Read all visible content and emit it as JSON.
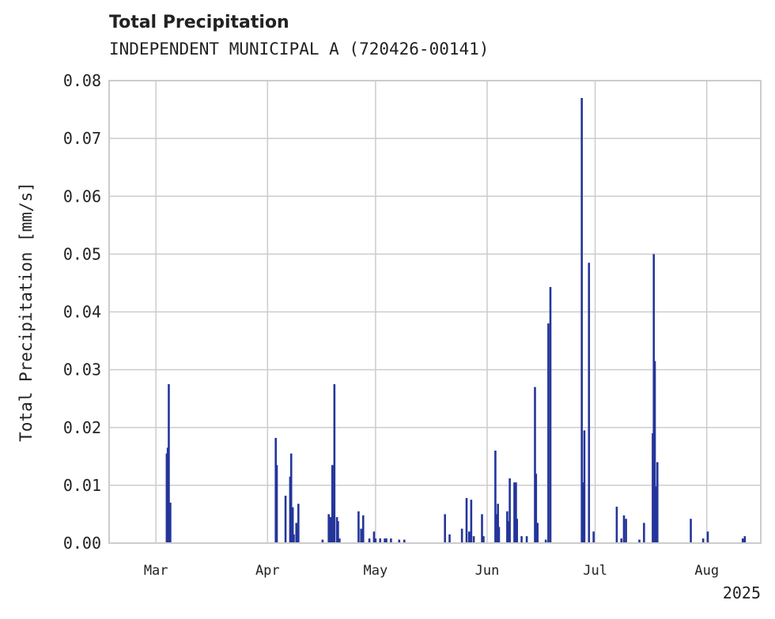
{
  "chart_data": {
    "type": "bar",
    "title": "Total Precipitation",
    "subtitle": "INDEPENDENT MUNICIPAL A (720426-00141)",
    "ylabel": "Total Precipitation [mm/s]",
    "xlabel": "",
    "year_label": "2025",
    "ylim": [
      0,
      0.08
    ],
    "yticks": [
      0.0,
      0.01,
      0.02,
      0.03,
      0.04,
      0.05,
      0.06,
      0.07,
      0.08
    ],
    "ytick_labels": [
      "0.00",
      "0.01",
      "0.02",
      "0.03",
      "0.04",
      "0.05",
      "0.06",
      "0.07",
      "0.08"
    ],
    "xlim": [
      "2025-02-16",
      "2025-08-16"
    ],
    "xticks": [
      {
        "date": "2025-03-01",
        "label": "Mar"
      },
      {
        "date": "2025-04-01",
        "label": "Apr"
      },
      {
        "date": "2025-05-01",
        "label": "May"
      },
      {
        "date": "2025-06-01",
        "label": "Jun"
      },
      {
        "date": "2025-07-01",
        "label": "Jul"
      },
      {
        "date": "2025-08-01",
        "label": "Aug"
      }
    ],
    "grid": true,
    "bar_color": "#24359a",
    "series": [
      {
        "points": [
          [
            "2025-03-04",
            0.0155
          ],
          [
            "2025-03-04",
            0.0165
          ],
          [
            "2025-03-04",
            0.0275
          ],
          [
            "2025-03-05",
            0.007
          ],
          [
            "2025-04-03",
            0.0182
          ],
          [
            "2025-04-03",
            0.0135
          ],
          [
            "2025-04-06",
            0.0082
          ],
          [
            "2025-04-07",
            0.0115
          ],
          [
            "2025-04-07",
            0.0155
          ],
          [
            "2025-04-08",
            0.0062
          ],
          [
            "2025-04-08",
            0.0015
          ],
          [
            "2025-04-09",
            0.0068
          ],
          [
            "2025-04-09",
            0.0035
          ],
          [
            "2025-04-16",
            0.0006
          ],
          [
            "2025-04-18",
            0.0045
          ],
          [
            "2025-04-18",
            0.005
          ],
          [
            "2025-04-19",
            0.0068
          ],
          [
            "2025-04-19",
            0.0275
          ],
          [
            "2025-04-19",
            0.0135
          ],
          [
            "2025-04-20",
            0.0045
          ],
          [
            "2025-04-20",
            0.0038
          ],
          [
            "2025-04-21",
            0.0008
          ],
          [
            "2025-04-26",
            0.0055
          ],
          [
            "2025-04-27",
            0.0048
          ],
          [
            "2025-04-27",
            0.0025
          ],
          [
            "2025-04-29",
            0.0008
          ],
          [
            "2025-04-30",
            0.002
          ],
          [
            "2025-05-01",
            0.0008
          ],
          [
            "2025-05-02",
            0.0008
          ],
          [
            "2025-05-03",
            0.0008
          ],
          [
            "2025-05-04",
            0.0008
          ],
          [
            "2025-05-05",
            0.0008
          ],
          [
            "2025-05-07",
            0.0006
          ],
          [
            "2025-05-09",
            0.0006
          ],
          [
            "2025-05-20",
            0.005
          ],
          [
            "2025-05-21",
            0.0015
          ],
          [
            "2025-05-25",
            0.0025
          ],
          [
            "2025-05-26",
            0.0078
          ],
          [
            "2025-05-27",
            0.0075
          ],
          [
            "2025-05-27",
            0.002
          ],
          [
            "2025-05-28",
            0.0012
          ],
          [
            "2025-05-30",
            0.005
          ],
          [
            "2025-05-31",
            0.0012
          ],
          [
            "2025-06-03",
            0.016
          ],
          [
            "2025-06-03",
            0.005
          ],
          [
            "2025-06-04",
            0.0068
          ],
          [
            "2025-06-04",
            0.0028
          ],
          [
            "2025-06-06",
            0.0055
          ],
          [
            "2025-06-07",
            0.0038
          ],
          [
            "2025-06-07",
            0.0112
          ],
          [
            "2025-06-08",
            0.0105
          ],
          [
            "2025-06-09",
            0.0105
          ],
          [
            "2025-06-09",
            0.0042
          ],
          [
            "2025-06-10",
            0.0012
          ],
          [
            "2025-06-12",
            0.0012
          ],
          [
            "2025-06-14",
            0.027
          ],
          [
            "2025-06-14",
            0.012
          ],
          [
            "2025-06-15",
            0.0035
          ],
          [
            "2025-06-17",
            0.0006
          ],
          [
            "2025-06-18",
            0.0443
          ],
          [
            "2025-06-18",
            0.038
          ],
          [
            "2025-06-27",
            0.077
          ],
          [
            "2025-06-27",
            0.0105
          ],
          [
            "2025-06-28",
            0.0195
          ],
          [
            "2025-06-29",
            0.0485
          ],
          [
            "2025-06-30",
            0.002
          ],
          [
            "2025-07-07",
            0.0063
          ],
          [
            "2025-07-08",
            0.0008
          ],
          [
            "2025-07-09",
            0.0042
          ],
          [
            "2025-07-09",
            0.0048
          ],
          [
            "2025-07-13",
            0.0006
          ],
          [
            "2025-07-14",
            0.0035
          ],
          [
            "2025-07-17",
            0.019
          ],
          [
            "2025-07-17",
            0.05
          ],
          [
            "2025-07-17",
            0.0315
          ],
          [
            "2025-07-18",
            0.0098
          ],
          [
            "2025-07-18",
            0.014
          ],
          [
            "2025-07-27",
            0.0042
          ],
          [
            "2025-07-31",
            0.0008
          ],
          [
            "2025-08-01",
            0.002
          ],
          [
            "2025-08-11",
            0.0012
          ],
          [
            "2025-08-11",
            0.0008
          ]
        ]
      }
    ]
  }
}
